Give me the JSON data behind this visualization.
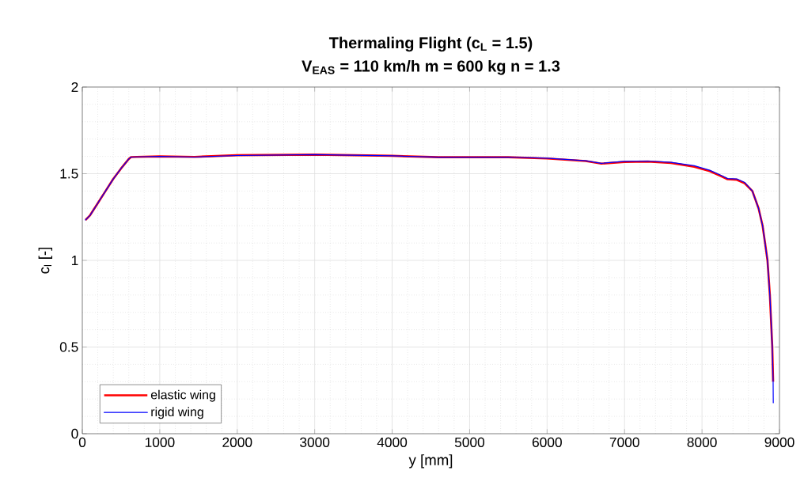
{
  "chart_data": {
    "type": "line",
    "title": "Thermaling Flight (c$_{L}$ = 1.5)",
    "subtitle": "V$_{EAS}$ = 110 km/h m = 600 kg n = 1.3",
    "xlabel": "y [mm]",
    "ylabel": "c$_{l}$ [-]",
    "xlim": [
      0,
      9000
    ],
    "ylim": [
      0,
      2
    ],
    "xticks": [
      0,
      1000,
      2000,
      3000,
      4000,
      5000,
      6000,
      7000,
      8000,
      9000
    ],
    "yticks": [
      0,
      0.5,
      1,
      1.5,
      2
    ],
    "grid": true,
    "legend": "bottom left",
    "marker": "none",
    "line_style": "solid",
    "series": [
      {
        "name": "elastic wing",
        "color": "#ff0000",
        "x": [
          41,
          100,
          200,
          300,
          400,
          500,
          600,
          629,
          700,
          1000,
          1450,
          2000,
          3000,
          4000,
          4600,
          5500,
          6000,
          6500,
          6700,
          7000,
          7300,
          7600,
          7900,
          8100,
          8250,
          8330,
          8450,
          8550,
          8650,
          8730,
          8782,
          8814,
          8845,
          8876,
          8907,
          8918
        ],
        "values": [
          1.233,
          1.26,
          1.33,
          1.4,
          1.47,
          1.53,
          1.585,
          1.596,
          1.597,
          1.6,
          1.597,
          1.607,
          1.61,
          1.603,
          1.595,
          1.595,
          1.588,
          1.573,
          1.558,
          1.568,
          1.57,
          1.562,
          1.54,
          1.515,
          1.485,
          1.468,
          1.465,
          1.445,
          1.4,
          1.3,
          1.2,
          1.1,
          1.0,
          0.8,
          0.5,
          0.3
        ]
      },
      {
        "name": "rigid wing",
        "color": "#0000ff",
        "x": [
          41,
          100,
          200,
          300,
          400,
          500,
          600,
          629,
          700,
          1000,
          1450,
          2000,
          3000,
          4000,
          4600,
          5500,
          6000,
          6500,
          6700,
          7000,
          7300,
          7600,
          7900,
          8100,
          8250,
          8330,
          8450,
          8550,
          8650,
          8730,
          8782,
          8814,
          8845,
          8876,
          8907,
          8918,
          8920
        ],
        "values": [
          1.233,
          1.26,
          1.33,
          1.4,
          1.47,
          1.53,
          1.585,
          1.596,
          1.597,
          1.6,
          1.596,
          1.605,
          1.61,
          1.603,
          1.595,
          1.596,
          1.59,
          1.575,
          1.56,
          1.571,
          1.573,
          1.566,
          1.546,
          1.52,
          1.49,
          1.472,
          1.47,
          1.45,
          1.4,
          1.3,
          1.2,
          1.1,
          1.0,
          0.8,
          0.5,
          0.3,
          0.178
        ]
      }
    ]
  }
}
